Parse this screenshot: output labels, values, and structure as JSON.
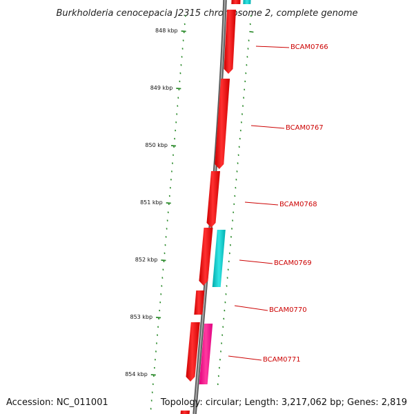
{
  "title": "Burkholderia cenocepacia J2315 chromosome 2, complete genome",
  "footer": {
    "accession": "Accession: NC_011001",
    "topology": "Topology: circular; Length: 3,217,062 bp; Genes: 2,819"
  },
  "ticks": [
    "848 kbp",
    "849 kbp",
    "850 kbp",
    "851 kbp",
    "852 kbp",
    "853 kbp",
    "854 kbp"
  ],
  "gene_labels": [
    "BCAM0766",
    "BCAM0767",
    "BCAM0768",
    "BCAM0769",
    "BCAM0770",
    "BCAM0771"
  ],
  "colors": {
    "backbone": "#808080",
    "tick": "#2a8a2a",
    "red_feature": "#ff0000",
    "cyan_feature": "#00cccc",
    "magenta_feature": "#ff1493",
    "label": "#cc0000"
  }
}
